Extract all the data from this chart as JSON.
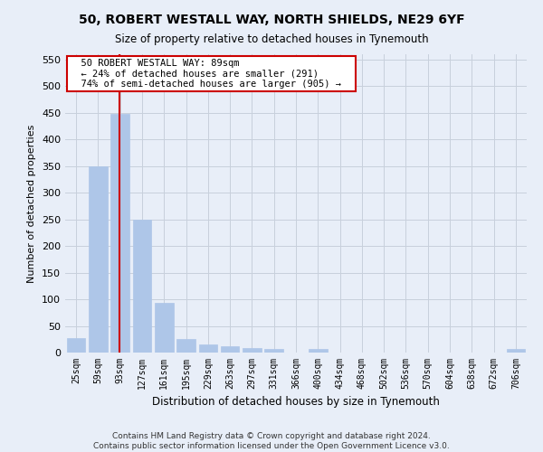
{
  "title": "50, ROBERT WESTALL WAY, NORTH SHIELDS, NE29 6YF",
  "subtitle": "Size of property relative to detached houses in Tynemouth",
  "xlabel": "Distribution of detached houses by size in Tynemouth",
  "ylabel": "Number of detached properties",
  "footer_line1": "Contains HM Land Registry data © Crown copyright and database right 2024.",
  "footer_line2": "Contains public sector information licensed under the Open Government Licence v3.0.",
  "categories": [
    "25sqm",
    "59sqm",
    "93sqm",
    "127sqm",
    "161sqm",
    "195sqm",
    "229sqm",
    "263sqm",
    "297sqm",
    "331sqm",
    "366sqm",
    "400sqm",
    "434sqm",
    "468sqm",
    "502sqm",
    "536sqm",
    "570sqm",
    "604sqm",
    "638sqm",
    "672sqm",
    "706sqm"
  ],
  "values": [
    28,
    350,
    448,
    250,
    93,
    25,
    15,
    12,
    8,
    7,
    0,
    6,
    0,
    0,
    0,
    0,
    0,
    0,
    0,
    0,
    6
  ],
  "bar_color": "#aec6e8",
  "bar_edge_color": "#aec6e8",
  "grid_color": "#c8d0dc",
  "background_color": "#e8eef8",
  "red_line_x": 1.97,
  "annotation_text": "  50 ROBERT WESTALL WAY: 89sqm  \n  ← 24% of detached houses are smaller (291)  \n  74% of semi-detached houses are larger (905) →  ",
  "annotation_box_color": "white",
  "annotation_box_edge_color": "#cc0000",
  "ylim": [
    0,
    560
  ],
  "yticks": [
    0,
    50,
    100,
    150,
    200,
    250,
    300,
    350,
    400,
    450,
    500,
    550
  ]
}
